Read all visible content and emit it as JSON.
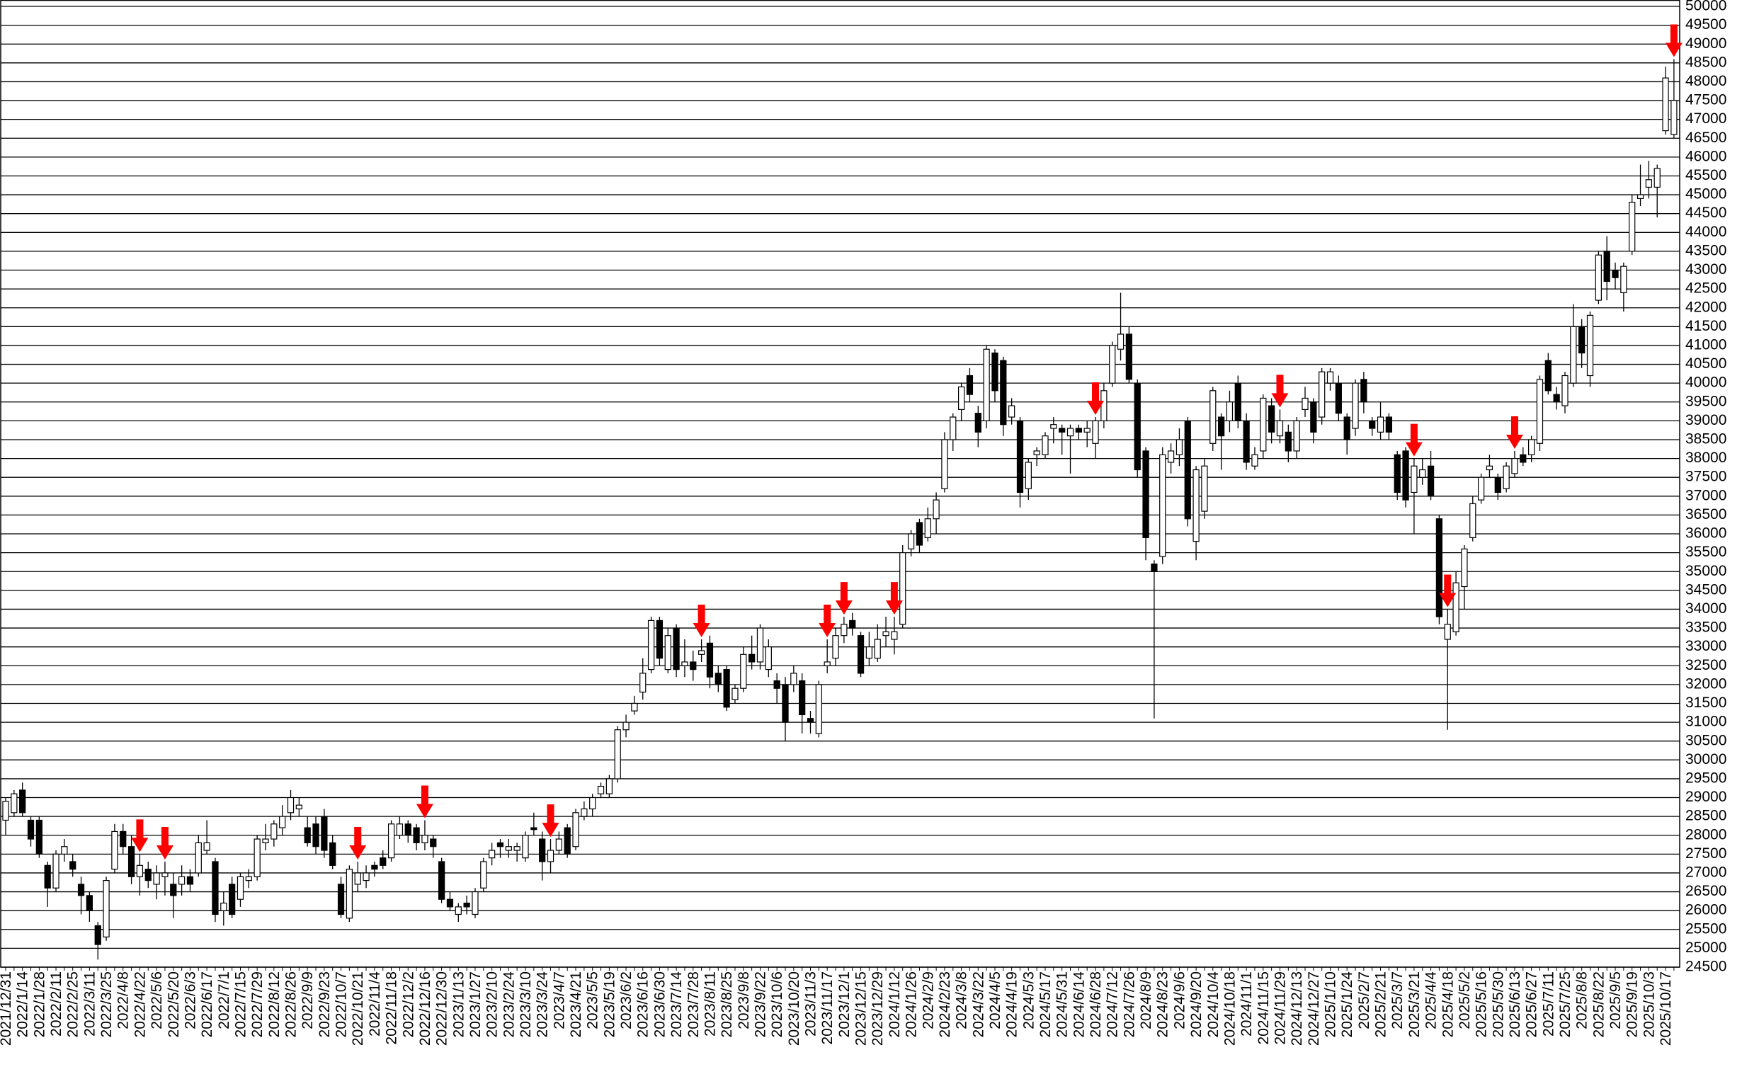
{
  "chart_data": {
    "type": "candlestick",
    "up_color": "#ffffff",
    "down_color": "#000000",
    "edge_color": "#000000",
    "signal_color": "#ff0000",
    "grid": true,
    "ylim": [
      24500,
      50000
    ],
    "yticks": [
      24500,
      25000,
      25500,
      26000,
      26500,
      27000,
      27500,
      28000,
      28500,
      29000,
      29500,
      30000,
      30500,
      31000,
      31500,
      32000,
      32500,
      33000,
      33500,
      34000,
      34500,
      35000,
      35500,
      36000,
      36500,
      37000,
      37500,
      38000,
      38500,
      39000,
      39500,
      40000,
      40500,
      41000,
      41500,
      42000,
      42500,
      43000,
      43500,
      44000,
      44500,
      45000,
      45500,
      46000,
      46500,
      47000,
      47500,
      48000,
      48500,
      49000,
      49500,
      50000
    ],
    "categories": [
      "2021/12/31",
      null,
      "2022/1/14",
      null,
      "2022/1/28",
      null,
      "2022/2/11",
      null,
      "2022/2/25",
      null,
      "2022/3/11",
      null,
      "2022/3/25",
      null,
      "2022/4/8",
      null,
      "2022/4/22",
      null,
      "2022/5/6",
      null,
      "2022/5/20",
      null,
      "2022/6/3",
      null,
      "2022/6/17",
      null,
      "2022/7/1",
      null,
      "2022/7/15",
      null,
      "2022/7/29",
      null,
      "2022/8/12",
      null,
      "2022/8/26",
      null,
      "2022/9/9",
      null,
      "2022/9/23",
      null,
      "2022/10/7",
      null,
      "2022/10/21",
      null,
      "2022/11/4",
      null,
      "2022/11/18",
      null,
      "2022/12/2",
      null,
      "2022/12/16",
      null,
      "2022/12/30",
      null,
      "2023/1/13",
      null,
      "2023/1/27",
      null,
      "2023/2/10",
      null,
      "2023/2/24",
      null,
      "2023/3/10",
      null,
      "2023/3/24",
      null,
      "2023/4/7",
      null,
      "2023/4/21",
      null,
      "2023/5/5",
      null,
      "2023/5/19",
      null,
      "2023/6/2",
      null,
      "2023/6/16",
      null,
      "2023/6/30",
      null,
      "2023/7/14",
      null,
      "2023/7/28",
      null,
      "2023/8/11",
      null,
      "2023/8/25",
      null,
      "2023/9/8",
      null,
      "2023/9/22",
      null,
      "2023/10/6",
      null,
      "2023/10/20",
      null,
      "2023/11/3",
      null,
      "2023/11/17",
      null,
      "2023/12/1",
      null,
      "2023/12/15",
      null,
      "2023/12/29",
      null,
      "2024/1/12",
      null,
      "2024/1/26",
      null,
      "2024/2/9",
      null,
      "2024/2/23",
      null,
      "2024/3/8",
      null,
      "2024/3/22",
      null,
      "2024/4/5",
      null,
      "2024/4/19",
      null,
      "2024/5/3",
      null,
      "2024/5/17",
      null,
      "2024/5/31",
      null,
      "2024/6/14",
      null,
      "2024/6/28",
      null,
      "2024/7/12",
      null,
      "2024/7/26",
      null,
      "2024/8/9",
      null,
      "2024/8/23",
      null,
      "2024/9/6",
      null,
      "2024/9/20",
      null,
      "2024/10/4",
      null,
      "2024/10/18",
      null,
      "2024/11/1",
      null,
      "2024/11/15",
      null,
      "2024/11/29",
      null,
      "2024/12/13",
      null,
      "2024/12/27",
      null,
      "2025/1/10",
      null,
      "2025/1/24",
      null,
      "2025/2/7",
      null,
      "2025/2/21",
      null,
      "2025/3/7",
      null,
      "2025/3/21",
      null,
      "2025/4/4",
      null,
      "2025/4/18",
      null,
      "2025/5/2",
      null,
      "2025/5/16",
      null,
      "2025/5/30",
      null,
      "2025/6/13",
      null,
      "2025/6/27",
      null,
      "2025/7/11",
      null,
      "2025/7/25",
      null,
      "2025/8/8",
      null,
      "2025/8/22",
      null,
      "2025/9/5",
      null,
      "2025/9/19",
      null,
      "2025/10/3",
      null,
      "2025/10/17",
      null
    ],
    "open": [
      28400,
      28600,
      29200,
      28400,
      28400,
      27200,
      26600,
      27500,
      27300,
      26700,
      26400,
      25600,
      25300,
      27100,
      28100,
      27700,
      26900,
      27100,
      26700,
      26900,
      26700,
      26700,
      26900,
      27000,
      27600,
      27300,
      26000,
      26700,
      26300,
      26800,
      26900,
      27800,
      27900,
      28200,
      28600,
      28700,
      28200,
      28300,
      28500,
      27800,
      26700,
      25800,
      26700,
      26800,
      27200,
      27400,
      27400,
      28000,
      28300,
      28200,
      27800,
      27900,
      27300,
      26300,
      25900,
      26200,
      25900,
      26600,
      27400,
      27800,
      27600,
      27600,
      27400,
      28200,
      27900,
      27300,
      27600,
      28200,
      27700,
      28500,
      28700,
      29100,
      29100,
      29500,
      30800,
      31300,
      31800,
      32400,
      33700,
      32400,
      33500,
      32500,
      32600,
      32800,
      33100,
      32300,
      32400,
      31600,
      31900,
      32800,
      32600,
      32400,
      32100,
      32000,
      32000,
      32100,
      31100,
      30700,
      32500,
      32700,
      33300,
      33700,
      33300,
      32700,
      32700,
      33300,
      33200,
      33600,
      35600,
      36300,
      35900,
      36400,
      37200,
      38500,
      39300,
      40200,
      39200,
      39000,
      40800,
      40600,
      39100,
      39000,
      37200,
      38100,
      38100,
      38800,
      38800,
      38600,
      38800,
      38700,
      38400,
      39000,
      40000,
      40900,
      41300,
      40000,
      38200,
      35200,
      35400,
      37900,
      38100,
      39000,
      35800,
      36600,
      38400,
      39100,
      39000,
      40000,
      39000,
      37800,
      38200,
      39400,
      38600,
      38700,
      38200,
      39300,
      39500,
      39100,
      40000,
      40000,
      39100,
      38800,
      40100,
      39000,
      38700,
      39100,
      38100,
      38200,
      37100,
      37500,
      37800,
      36400,
      33200,
      33400,
      34600,
      35900,
      36900,
      37700,
      37500,
      37200,
      37600,
      38100,
      38100,
      38400,
      40600,
      39700,
      39400,
      40000,
      41500,
      40200,
      42200,
      43500,
      43000,
      42400,
      43500,
      44900,
      45200,
      45200,
      46700,
      46600
    ],
    "high": [
      29000,
      29200,
      29400,
      28500,
      28500,
      27300,
      27600,
      27900,
      27500,
      26900,
      26500,
      25700,
      26900,
      28300,
      28300,
      28000,
      27500,
      27300,
      27200,
      27300,
      27000,
      27200,
      27100,
      28000,
      28400,
      27400,
      26500,
      26900,
      27000,
      27100,
      28000,
      28300,
      28400,
      28800,
      29200,
      29000,
      28500,
      28500,
      28700,
      28000,
      26900,
      27200,
      27300,
      27200,
      27300,
      27600,
      28400,
      28500,
      28400,
      28300,
      28400,
      28000,
      27400,
      26500,
      26200,
      26400,
      26600,
      27400,
      27800,
      27900,
      27900,
      27800,
      28100,
      28600,
      28100,
      27900,
      28100,
      28300,
      28700,
      28900,
      29100,
      29400,
      29600,
      30900,
      31200,
      31700,
      32700,
      33800,
      33800,
      33500,
      33600,
      33200,
      32900,
      33200,
      33300,
      32500,
      32500,
      32000,
      33000,
      33300,
      33600,
      33200,
      32300,
      32200,
      32500,
      32300,
      31300,
      32100,
      33200,
      33500,
      33800,
      33900,
      33400,
      33400,
      33600,
      33800,
      33800,
      35700,
      36100,
      36400,
      36700,
      37100,
      38700,
      39200,
      40000,
      40400,
      39400,
      41000,
      40900,
      40700,
      39600,
      39100,
      38000,
      38300,
      38700,
      39100,
      38900,
      38900,
      38900,
      39000,
      39100,
      40000,
      41100,
      42400,
      41500,
      40100,
      38300,
      35300,
      38300,
      38400,
      38800,
      39100,
      37800,
      38000,
      39900,
      39200,
      39800,
      40200,
      39200,
      38300,
      39700,
      39600,
      39300,
      38900,
      39100,
      39900,
      39600,
      40400,
      40400,
      40200,
      39200,
      40100,
      40300,
      39100,
      39500,
      39200,
      38200,
      38300,
      38000,
      38000,
      38200,
      36500,
      34000,
      35000,
      35700,
      37000,
      37600,
      38100,
      37600,
      37900,
      38200,
      38300,
      38600,
      40200,
      40800,
      39900,
      40300,
      42100,
      41700,
      41900,
      43500,
      43900,
      43200,
      43200,
      45000,
      45800,
      45900,
      45800,
      48400,
      48600
    ],
    "low": [
      28000,
      28500,
      28500,
      27700,
      27400,
      26100,
      26500,
      27300,
      26900,
      25900,
      25700,
      24700,
      25200,
      27000,
      27500,
      26700,
      26400,
      26600,
      26300,
      26400,
      25800,
      26400,
      26500,
      26900,
      27500,
      25700,
      25600,
      25800,
      26100,
      26600,
      26800,
      27600,
      27700,
      28000,
      28400,
      28500,
      27700,
      27500,
      27400,
      27100,
      25800,
      25700,
      26500,
      26600,
      26900,
      27100,
      27300,
      27900,
      27800,
      27600,
      27600,
      27400,
      26200,
      26000,
      25700,
      25900,
      25800,
      26500,
      27200,
      27400,
      27400,
      27300,
      27300,
      28000,
      26800,
      27000,
      27500,
      27400,
      27600,
      28400,
      28500,
      29000,
      29000,
      29400,
      30600,
      31200,
      31600,
      32300,
      32500,
      32300,
      32200,
      32200,
      32100,
      32600,
      31900,
      31800,
      31300,
      31500,
      31800,
      32400,
      32400,
      32200,
      31500,
      30500,
      31800,
      30700,
      30700,
      30600,
      32300,
      32500,
      33100,
      33300,
      32200,
      32500,
      32600,
      33000,
      32800,
      33500,
      35400,
      35500,
      35800,
      36000,
      37100,
      38200,
      39000,
      39500,
      38300,
      38800,
      39500,
      38600,
      38900,
      36700,
      36900,
      37800,
      38000,
      38400,
      38100,
      37600,
      38500,
      38300,
      38000,
      38800,
      39900,
      40600,
      40000,
      37500,
      35300,
      31100,
      35200,
      37600,
      37800,
      36200,
      35300,
      36400,
      38200,
      37700,
      38700,
      38800,
      37700,
      37700,
      38000,
      38400,
      38400,
      37900,
      38000,
      39100,
      38400,
      38900,
      39800,
      39000,
      38100,
      38600,
      39200,
      38600,
      38500,
      38500,
      36900,
      36700,
      36000,
      37300,
      36900,
      33600,
      30800,
      33300,
      34000,
      35800,
      36800,
      37500,
      36900,
      37100,
      37500,
      37800,
      37900,
      38200,
      39700,
      39300,
      39200,
      39900,
      40400,
      39900,
      42100,
      42200,
      42500,
      41900,
      43400,
      44700,
      44900,
      44400,
      46600,
      46500
    ],
    "close": [
      28900,
      29100,
      28600,
      27900,
      27500,
      26600,
      27500,
      27700,
      27100,
      26400,
      26000,
      25100,
      26800,
      28100,
      27700,
      26900,
      27200,
      26800,
      27000,
      27000,
      26400,
      26900,
      26700,
      27800,
      27800,
      25900,
      26200,
      25900,
      26900,
      26900,
      27900,
      27900,
      28300,
      28500,
      29000,
      28800,
      27800,
      27700,
      27600,
      27200,
      25900,
      27100,
      27000,
      27000,
      27100,
      27200,
      28300,
      28300,
      28000,
      27800,
      28000,
      27700,
      26300,
      26100,
      26100,
      26100,
      26500,
      27300,
      27600,
      27700,
      27700,
      27700,
      28000,
      28150,
      27300,
      27600,
      27900,
      27500,
      28600,
      28700,
      29000,
      29300,
      29500,
      30800,
      31000,
      31500,
      32300,
      33700,
      32700,
      33300,
      32400,
      32600,
      32400,
      32900,
      32200,
      32000,
      31400,
      31900,
      32800,
      32600,
      33500,
      33000,
      31900,
      31000,
      32300,
      31200,
      31000,
      32000,
      32600,
      33300,
      33600,
      33500,
      32300,
      33000,
      33200,
      33400,
      33400,
      35500,
      36000,
      35700,
      36400,
      36900,
      38500,
      39100,
      39900,
      39700,
      38700,
      40900,
      39800,
      38900,
      39400,
      37100,
      37900,
      38200,
      38600,
      38900,
      38700,
      38800,
      38700,
      38800,
      39000,
      39800,
      41000,
      41300,
      40100,
      37700,
      35900,
      35000,
      38100,
      38200,
      38500,
      36400,
      37700,
      37800,
      39800,
      38600,
      39500,
      39000,
      37900,
      38100,
      39600,
      38700,
      39000,
      38200,
      39000,
      39600,
      38700,
      40300,
      40300,
      39200,
      38500,
      40000,
      39500,
      38800,
      39100,
      38700,
      37100,
      36900,
      37800,
      37700,
      37000,
      33800,
      33600,
      34700,
      35600,
      36800,
      37500,
      37800,
      37100,
      37800,
      38000,
      37900,
      38500,
      40100,
      39800,
      39500,
      40200,
      41500,
      40800,
      41800,
      43400,
      42700,
      42800,
      43100,
      44800,
      45000,
      45400,
      45700,
      48100,
      47500
    ],
    "signals": [
      16,
      19,
      42,
      50,
      65,
      83,
      98,
      100,
      106,
      130,
      152,
      168,
      172,
      180,
      199
    ]
  }
}
